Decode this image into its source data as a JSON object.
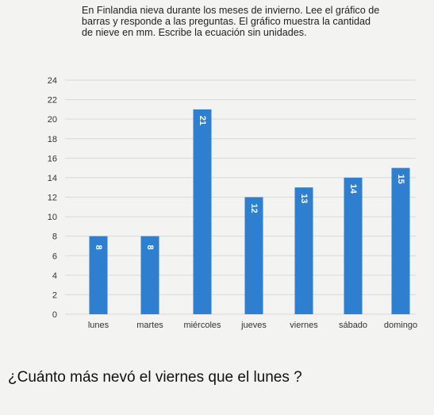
{
  "instructions": {
    "lines": [
      "En Finlandia nieva durante los meses de invierno. Lee el gráfico de",
      "barras y responde a las preguntas. El gráfico muestra la cantidad",
      "de nieve en mm. Escribe la ecuación sin unidades."
    ]
  },
  "question": "¿Cuánto más nevó el viernes que el lunes ?",
  "chart_data": {
    "type": "bar",
    "title": "",
    "xlabel": "",
    "ylabel": "",
    "categories": [
      "lunes",
      "martes",
      "miércoles",
      "jueves",
      "viernes",
      "sábado",
      "domingo"
    ],
    "values": [
      8,
      8,
      21,
      12,
      13,
      14,
      15
    ],
    "value_labels": [
      "8",
      "8",
      "21",
      "12",
      "13",
      "14",
      "15"
    ],
    "yticks": [
      "0",
      "2",
      "4",
      "6",
      "8",
      "10",
      "12",
      "14",
      "16",
      "18",
      "20",
      "22",
      "24"
    ],
    "ylim": [
      0,
      24
    ],
    "grid": true,
    "legend": "none",
    "bar_color": "#2f7fd0",
    "label_color": "#ffffff"
  }
}
